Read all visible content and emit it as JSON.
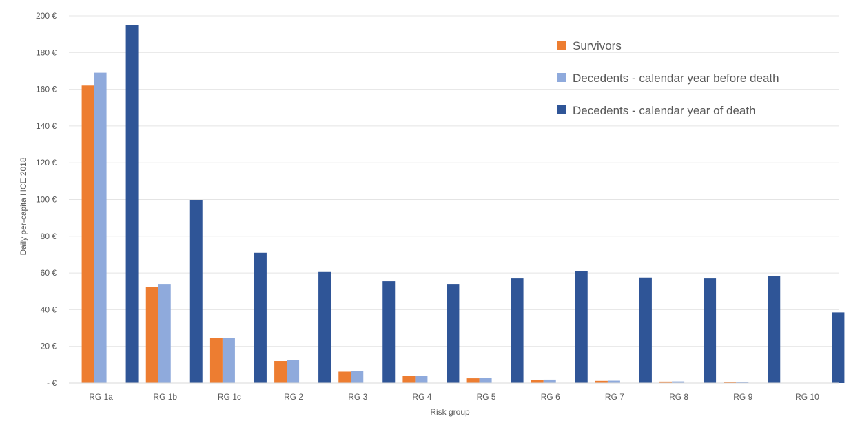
{
  "chart_data": {
    "type": "bar",
    "title": "",
    "xlabel": "Risk group",
    "ylabel": "Daily per-capita HCE 2018",
    "categories": [
      "RG 1a",
      "RG 1b",
      "RG 1c",
      "RG 2",
      "RG 3",
      "RG 4",
      "RG 5",
      "RG 6",
      "RG 7",
      "RG 8",
      "RG 9",
      "RG 10"
    ],
    "series": [
      {
        "name": "Survivors",
        "color": "#ed7d31",
        "values": [
          162,
          52.5,
          24.5,
          12,
          6.2,
          3.8,
          2.6,
          1.8,
          1.2,
          0.8,
          0.4,
          0
        ]
      },
      {
        "name": "Decedents - calendar year before death",
        "color": "#8faadc",
        "values": [
          169,
          54,
          24.5,
          12.5,
          6.4,
          3.9,
          2.7,
          1.9,
          1.3,
          0.9,
          0.5,
          0
        ]
      },
      {
        "name": "Decedents - calendar year of death",
        "color": "#2f5597",
        "values": [
          195,
          99.5,
          71,
          60.5,
          55.5,
          54,
          57,
          61,
          57.5,
          57,
          58.5,
          38.5
        ]
      }
    ],
    "yticks": [
      "-  €",
      "20 €",
      "40 €",
      "60 €",
      "80 €",
      "100 €",
      "120 €",
      "140 €",
      "160 €",
      "180 €",
      "200 €"
    ],
    "ylim": [
      0,
      200
    ],
    "ystep": 20,
    "grid": true,
    "legend_position": "top-right"
  }
}
